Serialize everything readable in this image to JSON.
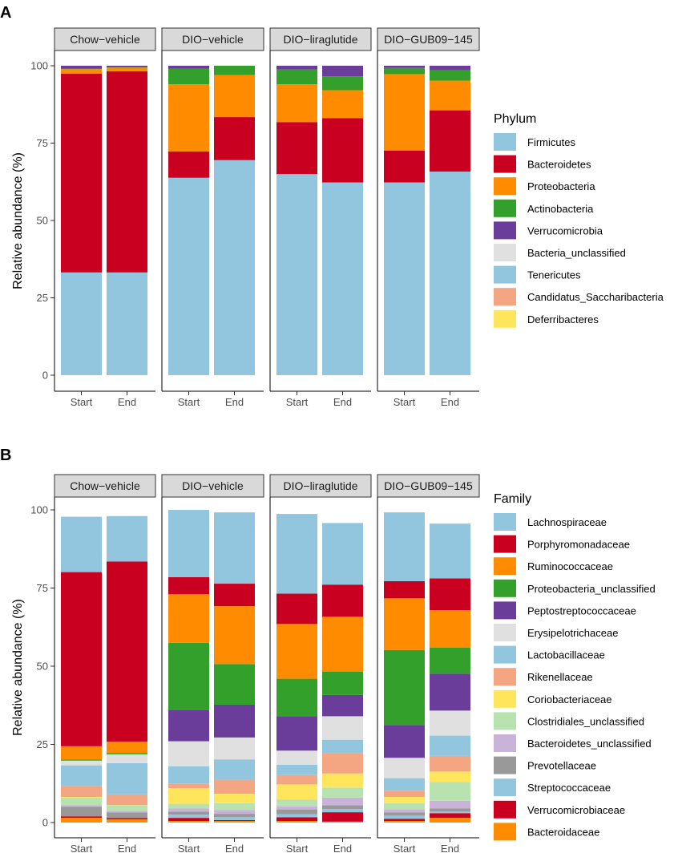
{
  "chart_data": [
    {
      "panel": "A",
      "type": "bar",
      "stacked": true,
      "ylabel": "Relative abundance (%)",
      "ylim": [
        0,
        100
      ],
      "yticks": [
        0,
        25,
        50,
        75,
        100
      ],
      "facets": [
        "Chow−vehicle",
        "DIO−vehicle",
        "DIO−liraglutide",
        "DIO−GUB09−145"
      ],
      "categories": [
        "Start",
        "End"
      ],
      "legend_title": "Phylum",
      "series": [
        {
          "name": "Firmicutes",
          "color": "#92c5de",
          "values": [
            [
              33.2,
              33.2
            ],
            [
              63.8,
              69.5
            ],
            [
              65.0,
              62.3
            ],
            [
              62.3,
              65.8
            ]
          ]
        },
        {
          "name": "Bacteroidetes",
          "color": "#ca0020",
          "values": [
            [
              64.2,
              65.0
            ],
            [
              8.5,
              13.9
            ],
            [
              16.8,
              20.8
            ],
            [
              10.3,
              19.8
            ]
          ]
        },
        {
          "name": "Proteobacteria",
          "color": "#ff8c00",
          "values": [
            [
              1.5,
              1.2
            ],
            [
              21.7,
              13.6
            ],
            [
              12.2,
              9.0
            ],
            [
              24.7,
              9.6
            ]
          ]
        },
        {
          "name": "Actinobacteria",
          "color": "#33a02c",
          "values": [
            [
              0.2,
              0.1
            ],
            [
              5.0,
              3.0
            ],
            [
              4.8,
              4.5
            ],
            [
              2.0,
              3.3
            ]
          ]
        },
        {
          "name": "Verrucomicrobia",
          "color": "#6a3d9a",
          "values": [
            [
              0.9,
              0.5
            ],
            [
              1.0,
              0.0
            ],
            [
              1.2,
              3.4
            ],
            [
              0.7,
              1.5
            ]
          ]
        },
        {
          "name": "Bacteria_unclassified",
          "color": "#e0e0e0",
          "values": [
            [
              0,
              0
            ],
            [
              0,
              0
            ],
            [
              0,
              0
            ],
            [
              0,
              0
            ]
          ]
        },
        {
          "name": "Tenericutes",
          "color": "#92c5de",
          "values": [
            [
              0,
              0
            ],
            [
              0,
              0
            ],
            [
              0,
              0
            ],
            [
              0,
              0
            ]
          ]
        },
        {
          "name": "Candidatus_Saccharibacteria",
          "color": "#f4a582",
          "values": [
            [
              0,
              0
            ],
            [
              0,
              0
            ],
            [
              0,
              0
            ],
            [
              0,
              0
            ]
          ]
        },
        {
          "name": "Deferribacteres",
          "color": "#ffe55c",
          "values": [
            [
              0,
              0
            ],
            [
              0,
              0
            ],
            [
              0,
              0
            ],
            [
              0,
              0
            ]
          ]
        }
      ]
    },
    {
      "panel": "B",
      "type": "bar",
      "stacked": true,
      "ylabel": "Relative abundance (%)",
      "ylim": [
        0,
        100
      ],
      "yticks": [
        0,
        25,
        50,
        75,
        100
      ],
      "facets": [
        "Chow−vehicle",
        "DIO−vehicle",
        "DIO−liraglutide",
        "DIO−GUB09−145"
      ],
      "categories": [
        "Start",
        "End"
      ],
      "legend_title": "Family",
      "series": [
        {
          "name": "Bacteroidaceae",
          "color": "#ff8c00",
          "values": [
            [
              1.5,
              1.0
            ],
            [
              0.5,
              0.5
            ],
            [
              0.5,
              0.3
            ],
            [
              0.5,
              1.5
            ]
          ]
        },
        {
          "name": "Verrucomicrobiaceae",
          "color": "#ca0020",
          "values": [
            [
              0.5,
              0.4
            ],
            [
              1.0,
              0.3
            ],
            [
              1.2,
              3.0
            ],
            [
              0.7,
              1.5
            ]
          ]
        },
        {
          "name": "Streptococcaceae",
          "color": "#92c5de",
          "values": [
            [
              0,
              0
            ],
            [
              1.0,
              1.0
            ],
            [
              1.0,
              1.0
            ],
            [
              1.0,
              0.5
            ]
          ]
        },
        {
          "name": "Prevotellaceae",
          "color": "#999999",
          "values": [
            [
              3.0,
              1.8
            ],
            [
              1.0,
              1.0
            ],
            [
              1.5,
              1.2
            ],
            [
              1.0,
              1.0
            ]
          ]
        },
        {
          "name": "Bacteroidetes_unclassified",
          "color": "#c9b3d9",
          "values": [
            [
              0.5,
              0.5
            ],
            [
              1.0,
              1.2
            ],
            [
              1.0,
              2.5
            ],
            [
              1.0,
              2.5
            ]
          ]
        },
        {
          "name": "Clostridiales_unclassified",
          "color": "#b8e3b0",
          "values": [
            [
              2.5,
              1.8
            ],
            [
              1.5,
              2.2
            ],
            [
              2.2,
              3.2
            ],
            [
              2.0,
              6.0
            ]
          ]
        },
        {
          "name": "Coriobacteriaceae",
          "color": "#ffe55c",
          "values": [
            [
              0.2,
              0.1
            ],
            [
              5.0,
              3.0
            ],
            [
              4.8,
              4.5
            ],
            [
              2.0,
              3.3
            ]
          ]
        },
        {
          "name": "Rikenellaceae",
          "color": "#f4a582",
          "values": [
            [
              3.5,
              3.4
            ],
            [
              1.5,
              4.5
            ],
            [
              3.0,
              6.5
            ],
            [
              2.0,
              5.0
            ]
          ]
        },
        {
          "name": "Lactobacillaceae",
          "color": "#92c5de",
          "values": [
            [
              6.6,
              10.0
            ],
            [
              5.5,
              6.5
            ],
            [
              3.3,
              4.3
            ],
            [
              4.0,
              6.5
            ]
          ]
        },
        {
          "name": "Erysipelotrichaceae",
          "color": "#e0e0e0",
          "values": [
            [
              1.5,
              2.8
            ],
            [
              8.0,
              7.0
            ],
            [
              4.5,
              7.5
            ],
            [
              6.5,
              8.0
            ]
          ]
        },
        {
          "name": "Peptostreptococcaceae",
          "color": "#6a3d9a",
          "values": [
            [
              0,
              0
            ],
            [
              10.0,
              10.5
            ],
            [
              11.0,
              6.8
            ],
            [
              10.5,
              11.8
            ]
          ]
        },
        {
          "name": "Proteobacteria_unclassified",
          "color": "#33a02c",
          "values": [
            [
              0.4,
              0.4
            ],
            [
              21.5,
              13.0
            ],
            [
              12.0,
              7.5
            ],
            [
              24.0,
              8.3
            ]
          ]
        },
        {
          "name": "Ruminococcaceae",
          "color": "#ff8c00",
          "values": [
            [
              4.2,
              3.7
            ],
            [
              15.5,
              18.5
            ],
            [
              17.5,
              17.5
            ],
            [
              16.5,
              12.0
            ]
          ]
        },
        {
          "name": "Porphyromonadaceae",
          "color": "#ca0020",
          "values": [
            [
              55.7,
              57.6
            ],
            [
              5.5,
              7.2
            ],
            [
              9.7,
              10.3
            ],
            [
              5.5,
              10.2
            ]
          ]
        },
        {
          "name": "Lachnospiraceae",
          "color": "#92c5de",
          "values": [
            [
              17.7,
              14.5
            ],
            [
              21.5,
              22.8
            ],
            [
              25.5,
              19.7
            ],
            [
              22.0,
              17.5
            ]
          ]
        }
      ]
    }
  ]
}
